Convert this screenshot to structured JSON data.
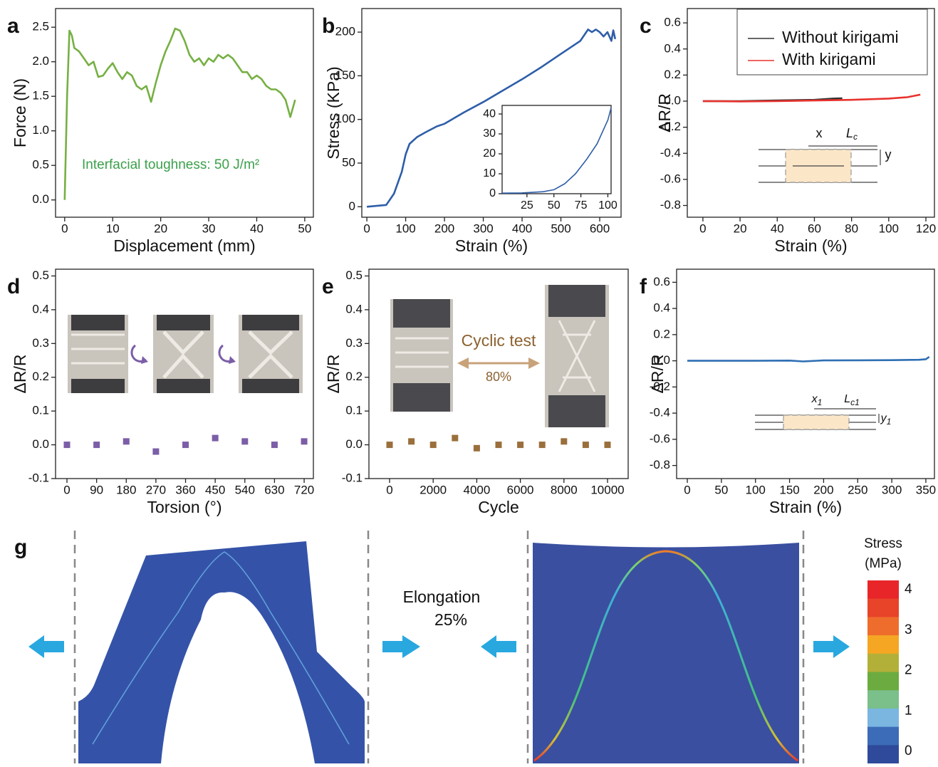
{
  "chart_data": [
    {
      "type": "line",
      "panel": "a",
      "xlabel": "Displacement (mm)",
      "ylabel": "Force (N)",
      "xlim": [
        -1.9,
        51.8
      ],
      "ylim": [
        -0.25,
        2.77
      ],
      "xticks": [
        0,
        10,
        20,
        30,
        40,
        50
      ],
      "yticks": [
        {
          "value": 0,
          "label": "0.0"
        },
        0.5,
        {
          "value": 1,
          "label": "1.0"
        },
        1.5,
        {
          "value": 2,
          "label": "2.0"
        },
        2.5
      ],
      "annotation": "Interfacial toughness: 50 J/m²",
      "annotation_color": "#3aa04a",
      "series": [
        {
          "color": "#76b043",
          "x": [
            0,
            0.5,
            1,
            1.5,
            2,
            3,
            4,
            5,
            6,
            7,
            8,
            9,
            10,
            11,
            12,
            13,
            14,
            15,
            16,
            17,
            18,
            19,
            20,
            21,
            22,
            23,
            24,
            25,
            26,
            27,
            28,
            29,
            30,
            31,
            32,
            33,
            34,
            35,
            36,
            37,
            38,
            39,
            40,
            41,
            42,
            43,
            44,
            45,
            46,
            47,
            48
          ],
          "values": [
            0,
            1.5,
            2.45,
            2.38,
            2.2,
            2.15,
            2.05,
            1.95,
            2.0,
            1.78,
            1.8,
            1.9,
            1.98,
            1.85,
            1.75,
            1.85,
            1.8,
            1.65,
            1.6,
            1.65,
            1.42,
            1.7,
            1.95,
            2.15,
            2.3,
            2.48,
            2.45,
            2.3,
            2.1,
            2.0,
            2.05,
            1.95,
            2.05,
            2.0,
            2.1,
            2.05,
            2.1,
            2.05,
            1.95,
            1.85,
            1.85,
            1.75,
            1.8,
            1.75,
            1.65,
            1.6,
            1.6,
            1.55,
            1.45,
            1.2,
            1.45
          ]
        }
      ]
    },
    {
      "type": "line",
      "panel": "b",
      "xlabel": "Strain (%)",
      "ylabel": "Stress (KPa)",
      "xlim": [
        -13,
        655
      ],
      "ylim": [
        -12,
        227
      ],
      "xticks": [
        0,
        100,
        200,
        300,
        400,
        500,
        600
      ],
      "yticks": [
        0,
        50,
        100,
        150,
        200
      ],
      "series": [
        {
          "color": "#2e5ea8",
          "x": [
            0,
            50,
            70,
            90,
            100,
            110,
            130,
            150,
            180,
            200,
            250,
            300,
            350,
            400,
            450,
            500,
            550,
            570,
            580,
            590,
            600,
            610,
            620,
            630,
            635,
            640
          ],
          "values": [
            0,
            2,
            15,
            40,
            60,
            72,
            80,
            85,
            92,
            95,
            108,
            120,
            133,
            146,
            160,
            175,
            190,
            203,
            200,
            203,
            200,
            195,
            200,
            190,
            202,
            192
          ]
        }
      ]
    },
    {
      "type": "line",
      "inset": true,
      "xlim": [
        2,
        103
      ],
      "ylim": [
        0,
        44.3
      ],
      "xticks": [
        25,
        50,
        75,
        100
      ],
      "yticks": [
        0,
        10,
        20,
        30,
        40
      ],
      "series": [
        {
          "color": "#2e5ea8",
          "x": [
            2,
            20,
            40,
            50,
            60,
            70,
            80,
            90,
            100,
            103
          ],
          "values": [
            0.3,
            0.4,
            1,
            2,
            5,
            10,
            17,
            25,
            37,
            43
          ]
        }
      ]
    },
    {
      "type": "line",
      "panel": "c",
      "xlabel": "Strain (%)",
      "ylabel": "ΔR/R",
      "xlim": [
        -8.4,
        124.6
      ],
      "ylim": [
        -0.89,
        0.71
      ],
      "xticks": [
        0,
        20,
        40,
        60,
        80,
        100,
        120
      ],
      "yticks": [
        -0.8,
        -0.6,
        -0.4,
        -0.2,
        {
          "value": 0,
          "label": "0.0"
        },
        0.2,
        0.4,
        0.6
      ],
      "legend": "upper right",
      "inset_labels": [
        {
          "text": "x"
        },
        {
          "text": "L",
          "sub": "c"
        },
        {
          "text": "y"
        }
      ],
      "series": [
        {
          "name": "Without kirigami",
          "color": "#333333",
          "x": [
            0,
            20,
            40,
            60,
            70,
            75
          ],
          "values": [
            0,
            0,
            0.005,
            0.01,
            0.02,
            0.022
          ]
        },
        {
          "name": "With kirigami",
          "color": "#e8322e",
          "x": [
            0,
            20,
            40,
            60,
            80,
            100,
            110,
            117
          ],
          "values": [
            0,
            -0.002,
            0,
            0.005,
            0.01,
            0.02,
            0.03,
            0.05
          ]
        }
      ]
    },
    {
      "type": "scatter",
      "panel": "d",
      "xlabel": "Torsion (°)",
      "ylabel": "ΔR/R",
      "xlim": [
        -34.6,
        748
      ],
      "ylim": [
        -0.1,
        0.52
      ],
      "xticks": [
        0,
        90,
        180,
        270,
        360,
        450,
        540,
        630,
        720
      ],
      "yticks": [
        -0.1,
        {
          "value": 0,
          "label": "0.0"
        },
        0.1,
        0.2,
        0.3,
        0.4,
        0.5
      ],
      "series": [
        {
          "color": "#7b5ea7",
          "x": [
            0,
            90,
            180,
            270,
            360,
            450,
            540,
            630,
            720
          ],
          "values": [
            0,
            0,
            0.01,
            -0.02,
            0,
            0.02,
            0.01,
            0,
            0.01
          ]
        }
      ]
    },
    {
      "type": "scatter",
      "panel": "e",
      "xlabel": "Cycle",
      "ylabel": "ΔR/R",
      "xlim": [
        -948,
        10948
      ],
      "ylim": [
        -0.1,
        0.52
      ],
      "xticks": [
        0,
        2000,
        4000,
        6000,
        8000,
        10000
      ],
      "yticks": [
        -0.1,
        {
          "value": 0,
          "label": "0.0"
        },
        0.1,
        0.2,
        0.3,
        0.4,
        0.5
      ],
      "annotations": [
        "Cyclic test",
        "80%"
      ],
      "annotation_color": "#8c6230",
      "series": [
        {
          "color": "#9a6f3c",
          "x": [
            0,
            1000,
            2000,
            3000,
            4000,
            5000,
            6000,
            7000,
            8000,
            9000,
            10000
          ],
          "values": [
            0,
            0.01,
            0,
            0.02,
            -0.01,
            0,
            0,
            0,
            0.01,
            0,
            0
          ]
        }
      ]
    },
    {
      "type": "line",
      "panel": "f",
      "xlabel": "Strain (%)",
      "ylabel": "ΔR/R",
      "xlim": [
        -15.7,
        362.6
      ],
      "ylim": [
        -0.9,
        0.7
      ],
      "xticks": [
        0,
        50,
        100,
        150,
        200,
        250,
        300,
        350
      ],
      "yticks": [
        -0.8,
        -0.6,
        -0.4,
        -0.2,
        {
          "value": 0,
          "label": "0.0"
        },
        0.2,
        0.4,
        0.6
      ],
      "inset_labels": [
        {
          "text": "x",
          "sub": "1"
        },
        {
          "text": "L",
          "sub": "c1"
        },
        {
          "text": "y",
          "sub": "1"
        }
      ],
      "series": [
        {
          "color": "#2e6fb3",
          "x": [
            0,
            50,
            100,
            150,
            170,
            200,
            250,
            300,
            340,
            350,
            355
          ],
          "values": [
            0,
            0,
            0,
            0.002,
            -0.005,
            0.003,
            0.004,
            0.005,
            0.008,
            0.012,
            0.03
          ]
        }
      ]
    }
  ],
  "diagram": {
    "panel": "g",
    "annotation": [
      "Elongation",
      "25%"
    ],
    "colorbar": {
      "title": [
        "Stress",
        "(MPa)"
      ],
      "lim": [
        -0.3,
        4.23
      ],
      "ticks": [
        0,
        1,
        2,
        3,
        4
      ],
      "colors": [
        "#e8262a",
        "#e8442a",
        "#ef6d2c",
        "#f5a623",
        "#b3b03a",
        "#6cab3f",
        "#7bbf8a",
        "#7ab6e0",
        "#3c6bb8",
        "#2f4a9a"
      ]
    }
  }
}
